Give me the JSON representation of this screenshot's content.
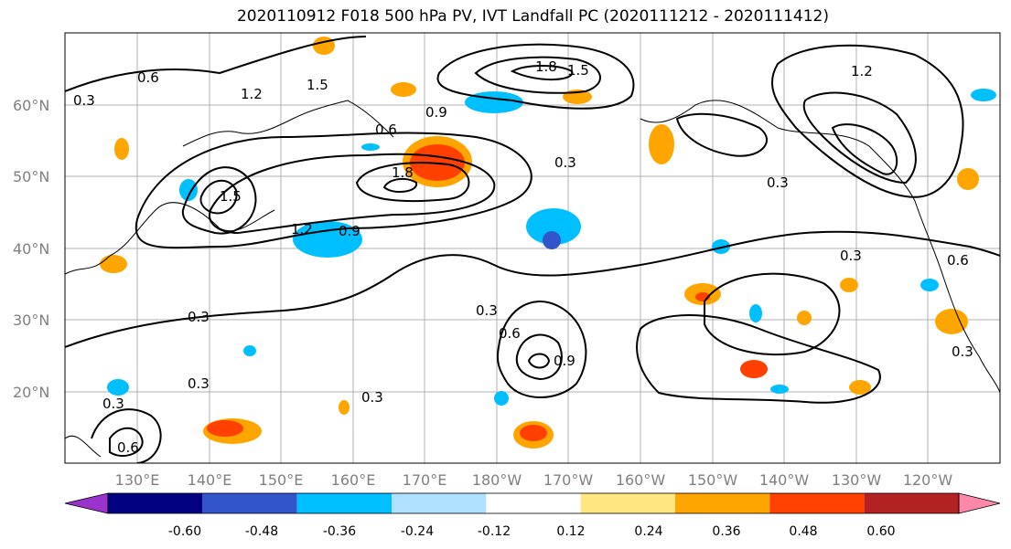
{
  "title": "2020110912 F018 500 hPa PV, IVT Landfall PC (2020111212 - 2020111412)",
  "lat_labels": [
    "60°N",
    "50°N",
    "40°N",
    "30°N",
    "20°N"
  ],
  "lon_labels": [
    "130°E",
    "140°E",
    "150°E",
    "160°E",
    "170°E",
    "180°W",
    "170°W",
    "160°W",
    "150°W",
    "140°W",
    "130°W",
    "120°W"
  ],
  "colorbar": {
    "colors": [
      "#9933cc",
      "#000080",
      "#3355cc",
      "#00bfff",
      "#b0e0ff",
      "#ffffff",
      "#ffe680",
      "#ffa500",
      "#ff4000",
      "#b22222",
      "#ff88aa"
    ],
    "tick_labels": [
      "-0.60",
      "-0.48",
      "-0.36",
      "-0.24",
      "-0.12",
      "0.12",
      "0.24",
      "0.36",
      "0.48",
      "0.60"
    ]
  },
  "contour_labels": [
    "0.3",
    "0.6",
    "0.9",
    "1.2",
    "1.5",
    "1.8"
  ]
}
